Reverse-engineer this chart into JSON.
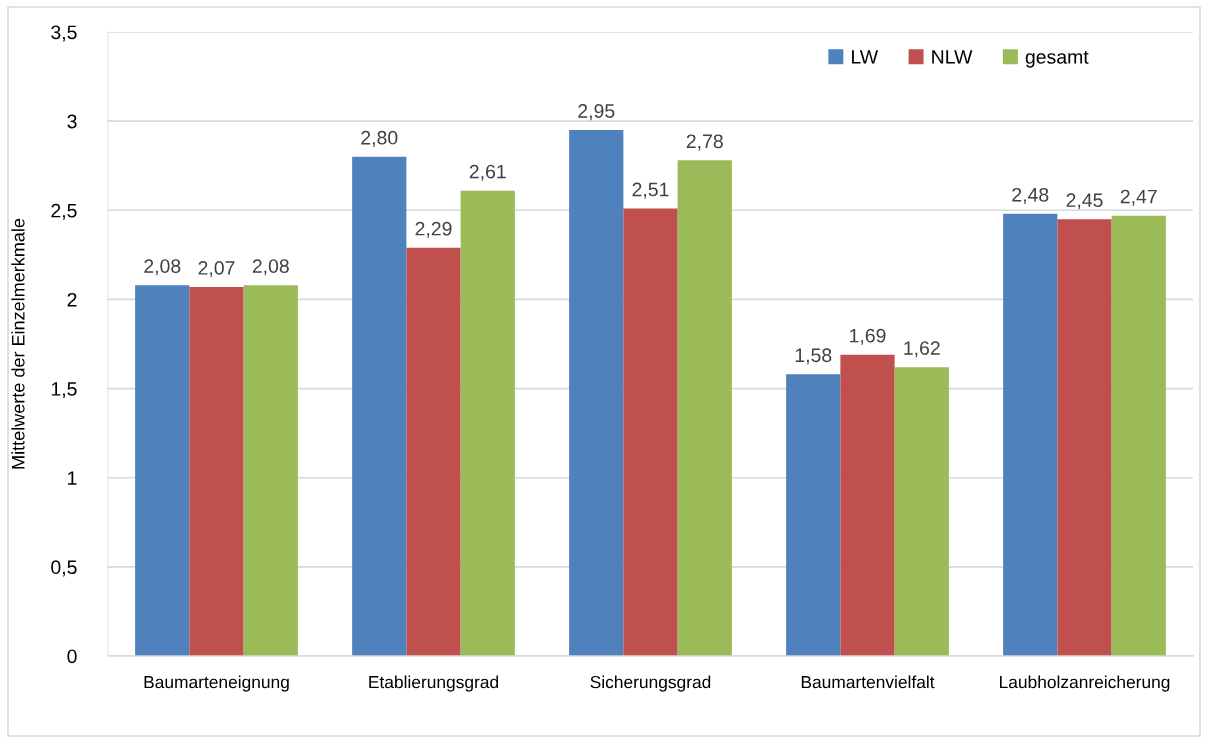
{
  "chart_data": {
    "type": "bar",
    "ylabel": "Mittelwerte der Einzelmerkmale",
    "categories": [
      "Baumarteneignung",
      "Etablierungsgrad",
      "Sicherungsgrad",
      "Baumartenvielfalt",
      "Laubholzanreicherung"
    ],
    "series": [
      {
        "name": "LW",
        "color": "#4f81bd",
        "values": [
          2.08,
          2.8,
          2.95,
          1.58,
          2.48
        ],
        "value_labels": [
          "2,08",
          "2,80",
          "2,95",
          "1,58",
          "2,48"
        ]
      },
      {
        "name": "NLW",
        "color": "#c0504d",
        "values": [
          2.07,
          2.29,
          2.51,
          1.69,
          2.45
        ],
        "value_labels": [
          "2,07",
          "2,29",
          "2,51",
          "1,69",
          "2,45"
        ]
      },
      {
        "name": "gesamt",
        "color": "#9bbb59",
        "values": [
          2.08,
          2.61,
          2.78,
          1.62,
          2.47
        ],
        "value_labels": [
          "2,08",
          "2,61",
          "2,78",
          "1,62",
          "2,47"
        ]
      }
    ],
    "ylim": [
      0,
      3.5
    ],
    "yticks": [
      0,
      {
        "value": 0.5,
        "label": "0,5"
      },
      1,
      {
        "value": 1.5,
        "label": "1,5"
      },
      2,
      {
        "value": 2.5,
        "label": "2,5"
      },
      3,
      {
        "value": 3.5,
        "label": "3,5"
      }
    ],
    "grid": "y",
    "legend": "top right"
  }
}
